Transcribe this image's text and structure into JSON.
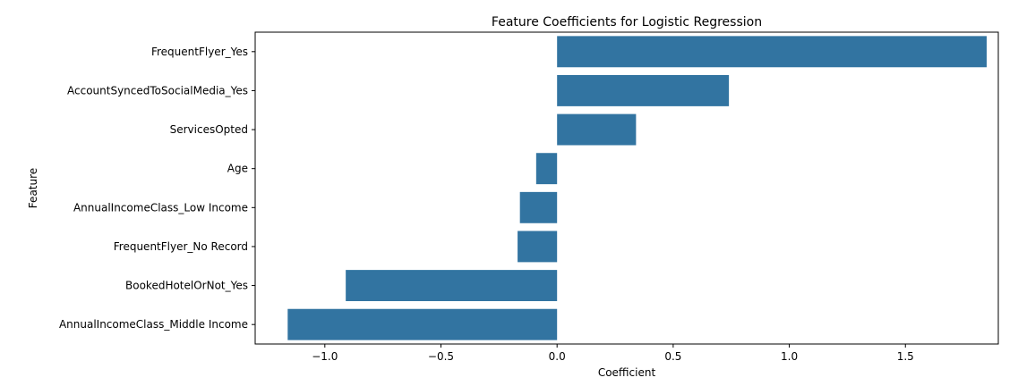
{
  "chart_data": {
    "type": "bar",
    "orientation": "horizontal",
    "title": "Feature Coefficients for Logistic Regression",
    "xlabel": "Coefficient",
    "ylabel": "Feature",
    "categories": [
      "FrequentFlyer_Yes",
      "AccountSyncedToSocialMedia_Yes",
      "ServicesOpted",
      "Age",
      "AnnualIncomeClass_Low Income",
      "FrequentFlyer_No Record",
      "BookedHotelOrNot_Yes",
      "AnnualIncomeClass_Middle Income"
    ],
    "values": [
      1.85,
      0.74,
      0.34,
      -0.09,
      -0.16,
      -0.17,
      -0.91,
      -1.16
    ],
    "xlim": [
      -1.3,
      1.9
    ],
    "xticks": [
      -1.0,
      -0.5,
      0.0,
      0.5,
      1.0,
      1.5
    ],
    "xtick_labels": [
      "−1.0",
      "−0.5",
      "0.0",
      "0.5",
      "1.0",
      "1.5"
    ],
    "bar_color": "#3274a1",
    "grid": false,
    "legend": "none"
  }
}
